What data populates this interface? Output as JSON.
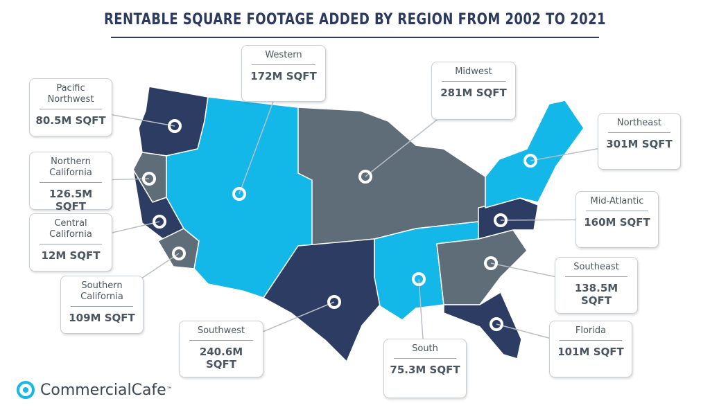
{
  "header": {
    "title": "RENTABLE SQUARE FOOTAGE ADDED BY REGION FROM 2002 TO 2021"
  },
  "regions": [
    {
      "name": "Pacific Northwest",
      "value": "80.5M SQFT"
    },
    {
      "name": "Northern California",
      "value": "126.5M SQFT"
    },
    {
      "name": "Central California",
      "value": "12M SQFT"
    },
    {
      "name": "Southern California",
      "value": "109M SQFT"
    },
    {
      "name": "Western",
      "value": "172M SQFT"
    },
    {
      "name": "Midwest",
      "value": "281M SQFT"
    },
    {
      "name": "Northeast",
      "value": "301M SQFT"
    },
    {
      "name": "Mid-Atlantic",
      "value": "160M SQFT"
    },
    {
      "name": "Southeast",
      "value": "138.5M SQFT"
    },
    {
      "name": "Florida",
      "value": "101M SQFT"
    },
    {
      "name": "South",
      "value": "75.3M SQFT"
    },
    {
      "name": "Southwest",
      "value": "240.6M SQFT"
    }
  ],
  "footer": {
    "brand": "CommercialCafe",
    "trademark": "™"
  }
}
